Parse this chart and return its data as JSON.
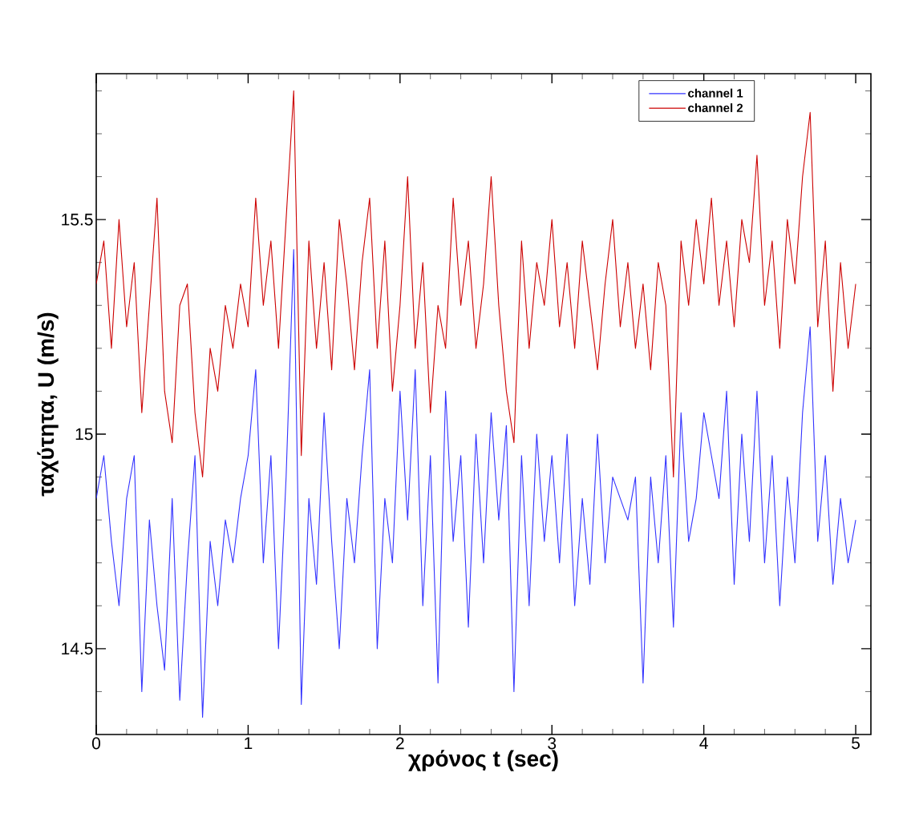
{
  "chart_data": {
    "type": "line",
    "xlabel": "χρόνος t (sec)",
    "ylabel": "ταχύτητα, U (m/s)",
    "legend": "top right",
    "xlim": [
      0,
      5.1
    ],
    "ylim": [
      14.3,
      15.84
    ],
    "xticks": [
      0,
      {
        "value": 0.2,
        "label": null
      },
      {
        "value": 0.4,
        "label": null
      },
      {
        "value": 0.6,
        "label": null
      },
      {
        "value": 0.8,
        "label": null
      },
      1,
      {
        "value": 1.2,
        "label": null
      },
      {
        "value": 1.4,
        "label": null
      },
      {
        "value": 1.6,
        "label": null
      },
      {
        "value": 1.8,
        "label": null
      },
      2,
      {
        "value": 2.2,
        "label": null
      },
      {
        "value": 2.4,
        "label": null
      },
      {
        "value": 2.6,
        "label": null
      },
      {
        "value": 2.8,
        "label": null
      },
      3,
      {
        "value": 3.2,
        "label": null
      },
      {
        "value": 3.4,
        "label": null
      },
      {
        "value": 3.6,
        "label": null
      },
      {
        "value": 3.8,
        "label": null
      },
      4,
      {
        "value": 4.2,
        "label": null
      },
      {
        "value": 4.4,
        "label": null
      },
      {
        "value": 4.6,
        "label": null
      },
      {
        "value": 4.8,
        "label": null
      },
      5
    ],
    "yticks": [
      {
        "value": 14.4,
        "label": null
      },
      14.5,
      {
        "value": 14.6,
        "label": null
      },
      {
        "value": 14.7,
        "label": null
      },
      {
        "value": 14.8,
        "label": null
      },
      {
        "value": 14.9,
        "label": null
      },
      15,
      {
        "value": 15.1,
        "label": null
      },
      {
        "value": 15.2,
        "label": null
      },
      {
        "value": 15.3,
        "label": null
      },
      {
        "value": 15.4,
        "label": null
      },
      15.5,
      {
        "value": 15.6,
        "label": null
      },
      {
        "value": 15.7,
        "label": null
      },
      {
        "value": 15.8,
        "label": null
      }
    ],
    "x": [
      0,
      0.05,
      0.1,
      0.15,
      0.2,
      0.25,
      0.3,
      0.35,
      0.4,
      0.45,
      0.5,
      0.55,
      0.6,
      0.65,
      0.7,
      0.75,
      0.8,
      0.85,
      0.9,
      0.95,
      1,
      1.05,
      1.1,
      1.15,
      1.2,
      1.25,
      1.3,
      1.35,
      1.4,
      1.45,
      1.5,
      1.55,
      1.6,
      1.65,
      1.7,
      1.75,
      1.8,
      1.85,
      1.9,
      1.95,
      2,
      2.05,
      2.1,
      2.15,
      2.2,
      2.25,
      2.3,
      2.35,
      2.4,
      2.45,
      2.5,
      2.55,
      2.6,
      2.65,
      2.7,
      2.75,
      2.8,
      2.85,
      2.9,
      2.95,
      3,
      3.05,
      3.1,
      3.15,
      3.2,
      3.25,
      3.3,
      3.35,
      3.4,
      3.45,
      3.5,
      3.55,
      3.6,
      3.65,
      3.7,
      3.75,
      3.8,
      3.85,
      3.9,
      3.95,
      4,
      4.05,
      4.1,
      4.15,
      4.2,
      4.25,
      4.3,
      4.35,
      4.4,
      4.45,
      4.5,
      4.55,
      4.6,
      4.65,
      4.7,
      4.75,
      4.8,
      4.85,
      4.9,
      4.95,
      5
    ],
    "series": [
      {
        "name": "channel 1",
        "color": "#3333ff",
        "values": [
          14.85,
          14.95,
          14.75,
          14.6,
          14.85,
          14.95,
          14.4,
          14.8,
          14.6,
          14.45,
          14.85,
          14.38,
          14.7,
          14.95,
          14.34,
          14.75,
          14.6,
          14.8,
          14.7,
          14.85,
          14.95,
          15.15,
          14.7,
          14.95,
          14.5,
          14.9,
          15.43,
          14.37,
          14.85,
          14.65,
          15.05,
          14.75,
          14.5,
          14.85,
          14.7,
          14.95,
          15.15,
          14.5,
          14.85,
          14.7,
          15.1,
          14.8,
          15.15,
          14.6,
          14.95,
          14.42,
          15.1,
          14.75,
          14.95,
          14.55,
          15.0,
          14.7,
          15.05,
          14.8,
          15.02,
          14.4,
          14.95,
          14.6,
          15.0,
          14.75,
          14.95,
          14.7,
          15.0,
          14.6,
          14.85,
          14.65,
          15.0,
          14.7,
          14.9,
          14.85,
          14.8,
          14.9,
          14.42,
          14.9,
          14.7,
          14.95,
          14.55,
          15.05,
          14.75,
          14.85,
          15.05,
          14.95,
          14.85,
          15.1,
          14.65,
          15.0,
          14.75,
          15.1,
          14.7,
          14.95,
          14.6,
          14.9,
          14.7,
          15.05,
          15.25,
          14.75,
          14.95,
          14.65,
          14.85,
          14.7,
          14.8
        ]
      },
      {
        "name": "channel 2",
        "color": "#cc0000",
        "values": [
          15.35,
          15.45,
          15.2,
          15.5,
          15.25,
          15.4,
          15.05,
          15.3,
          15.55,
          15.1,
          14.98,
          15.3,
          15.35,
          15.05,
          14.9,
          15.2,
          15.1,
          15.3,
          15.2,
          15.35,
          15.25,
          15.55,
          15.3,
          15.45,
          15.2,
          15.5,
          15.8,
          14.95,
          15.45,
          15.2,
          15.4,
          15.15,
          15.5,
          15.35,
          15.15,
          15.4,
          15.55,
          15.2,
          15.45,
          15.1,
          15.3,
          15.6,
          15.2,
          15.4,
          15.05,
          15.3,
          15.2,
          15.55,
          15.3,
          15.45,
          15.2,
          15.35,
          15.6,
          15.3,
          15.1,
          14.98,
          15.45,
          15.2,
          15.4,
          15.3,
          15.5,
          15.25,
          15.4,
          15.2,
          15.45,
          15.3,
          15.15,
          15.35,
          15.5,
          15.25,
          15.4,
          15.2,
          15.35,
          15.15,
          15.4,
          15.3,
          14.9,
          15.45,
          15.3,
          15.5,
          15.35,
          15.55,
          15.3,
          15.45,
          15.25,
          15.5,
          15.4,
          15.65,
          15.3,
          15.45,
          15.2,
          15.5,
          15.35,
          15.6,
          15.75,
          15.25,
          15.45,
          15.1,
          15.4,
          15.2,
          15.35
        ]
      }
    ]
  }
}
